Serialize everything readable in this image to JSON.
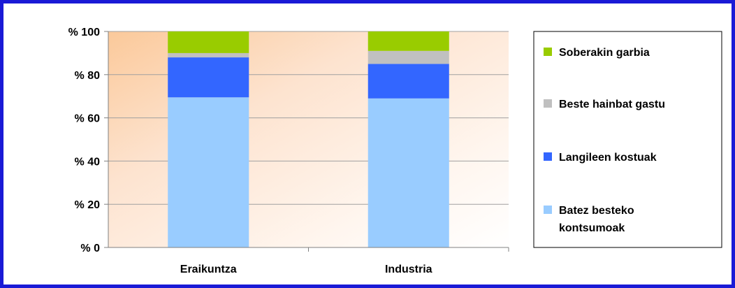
{
  "chart_data": {
    "type": "bar",
    "stacked": true,
    "categories": [
      "Eraikuntza",
      "Industria"
    ],
    "series": [
      {
        "name": "Batez besteko kontsumoak",
        "name_lines": [
          "Batez besteko",
          "kontsumoak"
        ],
        "color": "#99ccff",
        "values": [
          69.5,
          69
        ]
      },
      {
        "name": "Langileen kostuak",
        "name_lines": [
          "Langileen kostuak"
        ],
        "color": "#3366ff",
        "values": [
          18.5,
          16
        ]
      },
      {
        "name": "Beste hainbat gastu",
        "name_lines": [
          "Beste hainbat gastu"
        ],
        "color": "#c0c0c0",
        "values": [
          2,
          6
        ]
      },
      {
        "name": "Soberakin garbia",
        "name_lines": [
          "Soberakin garbia"
        ],
        "color": "#99cc00",
        "values": [
          10,
          9
        ]
      }
    ],
    "yticks": [
      "% 0",
      "% 20",
      "% 40",
      "% 60",
      "% 80",
      "% 100"
    ],
    "ylim": [
      0,
      100
    ],
    "grid": true,
    "legend_position": "right"
  }
}
